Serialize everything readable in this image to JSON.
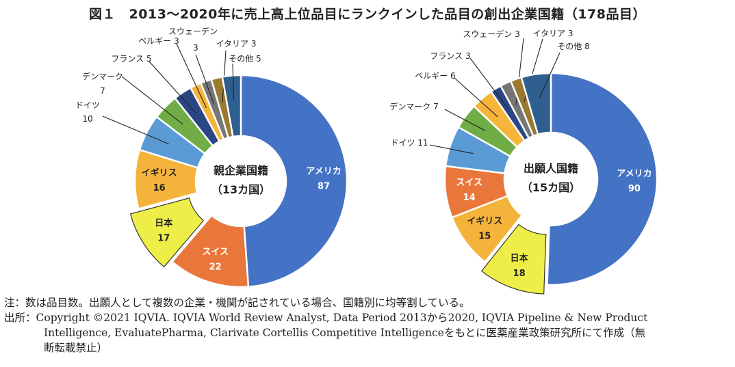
{
  "title": "図１　2013〜2020年に売上高上位品目にランクインした品目の創出企業国籍（178品目）",
  "colors": {
    "アメリカ": "#4472C4",
    "スイス": "#E9773B",
    "日本": "#EEEE48",
    "イギリス": "#F4B33A",
    "ドイツ": "#5B9BD5",
    "デンマーク": "#70AD47",
    "フランス": "#2C4685",
    "ベルギー": "#F6B53A",
    "スウェーデン": "#767676",
    "イタリア": "#9A7A31",
    "その他": "#2E5F8E"
  },
  "chart_data": [
    {
      "type": "pie",
      "style": "donut",
      "center_label": [
        "親企業国籍",
        "（13カ国）"
      ],
      "highlight": "日本",
      "categories": [
        "アメリカ",
        "スイス",
        "日本",
        "イギリス",
        "ドイツ",
        "デンマーク",
        "フランス",
        "ベルギー",
        "スウェーデン",
        "イタリア",
        "その他"
      ],
      "values": [
        87,
        22,
        17,
        16,
        10,
        7,
        5,
        3,
        3,
        3,
        5
      ]
    },
    {
      "type": "pie",
      "style": "donut",
      "center_label": [
        "出願人国籍",
        "（15カ国）"
      ],
      "highlight": "日本",
      "categories": [
        "アメリカ",
        "日本",
        "イギリス",
        "スイス",
        "ドイツ",
        "デンマーク",
        "ベルギー",
        "フランス",
        "スウェーデン",
        "イタリア",
        "その他"
      ],
      "values": [
        90,
        18,
        15,
        14,
        11,
        7,
        6,
        3,
        3,
        3,
        8
      ]
    }
  ],
  "notes": {
    "note": "注：数は品目数。出願人として複数の企業・機関が記されている場合、国籍別に均等割している。",
    "source1": "出所：Copyright ©2021 IQVIA. IQVIA World Review Analyst, Data Period 2013から2020, IQVIA Pipeline & New Product",
    "source2": "Intelligence, EvaluatePharma, Clarivate Cortellis Competitive Intelligenceをもとに医薬産業政策研究所にて作成（無",
    "source3": "断転載禁止）"
  }
}
